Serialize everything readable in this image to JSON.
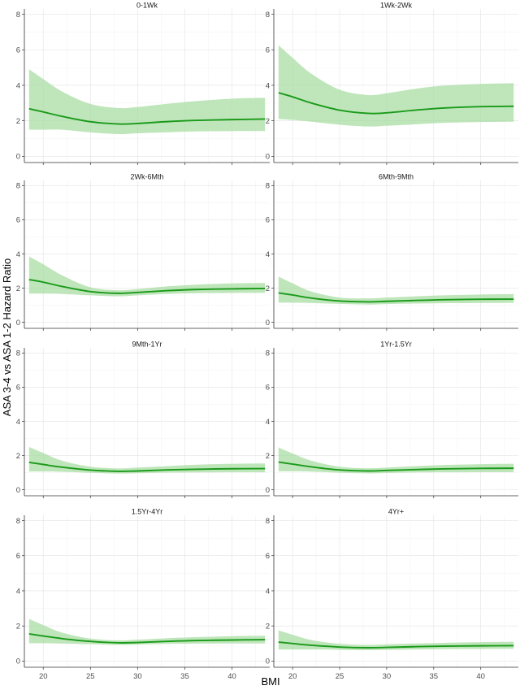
{
  "chart_data": {
    "type": "line",
    "xlabel": "BMI",
    "ylabel": "ASA 3-4 vs ASA 1-2 Hazard Ratio",
    "x_ticks": [
      20,
      25,
      30,
      35,
      40
    ],
    "y_ticks": [
      0,
      2,
      4,
      6,
      8
    ],
    "xlim": [
      18,
      44
    ],
    "ylim": [
      -0.35,
      8.3
    ],
    "grid": true,
    "line_color": "#1a9a1a",
    "band_color": "#a6dca0",
    "panels": [
      {
        "title": "0-1Wk",
        "x": [
          18.5,
          20,
          22,
          25,
          28,
          30,
          33,
          36,
          40,
          43.5
        ],
        "y": [
          2.68,
          2.5,
          2.25,
          1.95,
          1.82,
          1.85,
          1.95,
          2.02,
          2.07,
          2.1
        ],
        "lower": [
          1.5,
          1.5,
          1.5,
          1.35,
          1.25,
          1.3,
          1.35,
          1.4,
          1.42,
          1.42
        ],
        "upper": [
          4.9,
          4.35,
          3.65,
          2.95,
          2.72,
          2.78,
          2.95,
          3.1,
          3.25,
          3.3
        ]
      },
      {
        "title": "1Wk-2Wk",
        "x": [
          18.5,
          20,
          22,
          25,
          28,
          30,
          33,
          36,
          40,
          43.5
        ],
        "y": [
          3.58,
          3.35,
          3.0,
          2.6,
          2.42,
          2.45,
          2.6,
          2.72,
          2.8,
          2.82
        ],
        "lower": [
          2.1,
          2.05,
          1.95,
          1.78,
          1.68,
          1.72,
          1.8,
          1.88,
          1.93,
          1.95
        ],
        "upper": [
          6.25,
          5.55,
          4.65,
          3.75,
          3.45,
          3.55,
          3.8,
          3.98,
          4.08,
          4.12
        ]
      },
      {
        "title": "2Wk-6Mth",
        "x": [
          18.5,
          20,
          22,
          25,
          28,
          30,
          33,
          36,
          40,
          43.5
        ],
        "y": [
          2.5,
          2.35,
          2.1,
          1.8,
          1.7,
          1.75,
          1.85,
          1.92,
          1.96,
          1.98
        ],
        "lower": [
          1.68,
          1.68,
          1.66,
          1.58,
          1.52,
          1.58,
          1.66,
          1.7,
          1.72,
          1.72
        ],
        "upper": [
          3.85,
          3.4,
          2.75,
          2.05,
          1.88,
          1.95,
          2.1,
          2.2,
          2.28,
          2.3
        ]
      },
      {
        "title": "6Mth-9Mth",
        "x": [
          18.5,
          20,
          22,
          25,
          28,
          30,
          33,
          36,
          40,
          43.5
        ],
        "y": [
          1.72,
          1.6,
          1.42,
          1.25,
          1.2,
          1.23,
          1.28,
          1.32,
          1.35,
          1.36
        ],
        "lower": [
          1.15,
          1.15,
          1.13,
          1.08,
          1.04,
          1.07,
          1.1,
          1.12,
          1.13,
          1.14
        ],
        "upper": [
          2.68,
          2.28,
          1.8,
          1.45,
          1.4,
          1.45,
          1.52,
          1.58,
          1.63,
          1.65
        ]
      },
      {
        "title": "9Mth-1Yr",
        "x": [
          18.5,
          20,
          22,
          25,
          28,
          30,
          33,
          36,
          40,
          43.5
        ],
        "y": [
          1.6,
          1.48,
          1.32,
          1.15,
          1.08,
          1.1,
          1.16,
          1.2,
          1.23,
          1.24
        ],
        "lower": [
          1.07,
          1.07,
          1.05,
          0.99,
          0.95,
          0.97,
          1.0,
          1.01,
          1.02,
          1.02
        ],
        "upper": [
          2.5,
          2.15,
          1.7,
          1.35,
          1.25,
          1.3,
          1.38,
          1.46,
          1.52,
          1.54
        ]
      },
      {
        "title": "1Yr-1.5Yr",
        "x": [
          18.5,
          20,
          22,
          25,
          28,
          30,
          33,
          36,
          40,
          43.5
        ],
        "y": [
          1.62,
          1.5,
          1.34,
          1.16,
          1.1,
          1.13,
          1.18,
          1.22,
          1.25,
          1.26
        ],
        "lower": [
          1.08,
          1.08,
          1.06,
          1.0,
          0.96,
          0.98,
          1.01,
          1.02,
          1.03,
          1.03
        ],
        "upper": [
          2.48,
          2.12,
          1.7,
          1.35,
          1.26,
          1.3,
          1.38,
          1.45,
          1.5,
          1.52
        ]
      },
      {
        "title": "1.5Yr-4Yr",
        "x": [
          18.5,
          20,
          22,
          25,
          28,
          30,
          33,
          36,
          40,
          43.5
        ],
        "y": [
          1.55,
          1.43,
          1.28,
          1.12,
          1.04,
          1.06,
          1.12,
          1.17,
          1.2,
          1.22
        ],
        "lower": [
          1.02,
          1.02,
          1.0,
          0.96,
          0.92,
          0.94,
          0.98,
          1.0,
          1.01,
          1.01
        ],
        "upper": [
          2.4,
          2.05,
          1.62,
          1.28,
          1.18,
          1.22,
          1.3,
          1.36,
          1.42,
          1.44
        ]
      },
      {
        "title": "4Yr+",
        "x": [
          18.5,
          20,
          22,
          25,
          28,
          30,
          33,
          36,
          40,
          43.5
        ],
        "y": [
          1.08,
          1.0,
          0.9,
          0.8,
          0.76,
          0.78,
          0.82,
          0.85,
          0.87,
          0.88
        ],
        "lower": [
          0.66,
          0.66,
          0.66,
          0.64,
          0.62,
          0.64,
          0.66,
          0.68,
          0.69,
          0.7
        ],
        "upper": [
          1.75,
          1.5,
          1.2,
          0.98,
          0.92,
          0.95,
          1.0,
          1.04,
          1.08,
          1.1
        ]
      }
    ]
  }
}
